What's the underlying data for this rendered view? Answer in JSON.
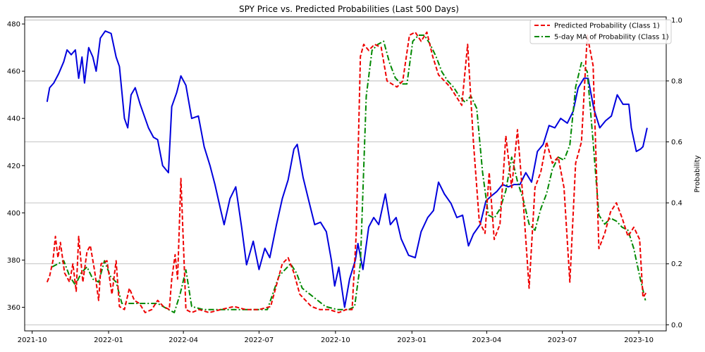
{
  "chart_data": {
    "type": "line",
    "title": "SPY Price vs. Predicted Probabilities (Last 500 Days)",
    "xlabel": "",
    "ylabel": "",
    "y2label": "Probability",
    "x_ticks": [
      "2021-10",
      "2022-01",
      "2022-04",
      "2022-07",
      "2022-10",
      "2023-01",
      "2023-04",
      "2023-07",
      "2023-10"
    ],
    "x_range": [
      "2021-09-22",
      "2023-11-03"
    ],
    "y_ticks": [
      360,
      380,
      400,
      420,
      440,
      460,
      480
    ],
    "ylim": [
      350,
      483
    ],
    "y2_ticks": [
      0.0,
      0.2,
      0.4,
      0.6,
      0.8,
      1.0
    ],
    "y2_tick_labels": [
      "0.0",
      "0.2",
      "0.4",
      "0.6",
      "0.8",
      "1.0"
    ],
    "y2lim": [
      -0.02,
      1.01
    ],
    "grid": "horizontal on probability axis",
    "legend": "top-right",
    "series": [
      {
        "name": "",
        "axis": "left",
        "color": "#0000dd",
        "style": "solid",
        "x": [
          "2021-10-19",
          "2021-10-22",
          "2021-10-27",
          "2021-11-02",
          "2021-11-08",
          "2021-11-12",
          "2021-11-17",
          "2021-11-22",
          "2021-11-26",
          "2021-11-30",
          "2021-12-03",
          "2021-12-08",
          "2021-12-13",
          "2021-12-17",
          "2021-12-22",
          "2021-12-28",
          "2022-01-04",
          "2022-01-10",
          "2022-01-14",
          "2022-01-20",
          "2022-01-24",
          "2022-01-28",
          "2022-02-02",
          "2022-02-08",
          "2022-02-14",
          "2022-02-18",
          "2022-02-24",
          "2022-03-01",
          "2022-03-07",
          "2022-03-14",
          "2022-03-18",
          "2022-03-24",
          "2022-03-29",
          "2022-04-04",
          "2022-04-11",
          "2022-04-19",
          "2022-04-26",
          "2022-05-03",
          "2022-05-09",
          "2022-05-16",
          "2022-05-20",
          "2022-05-27",
          "2022-06-03",
          "2022-06-10",
          "2022-06-16",
          "2022-06-24",
          "2022-07-01",
          "2022-07-08",
          "2022-07-14",
          "2022-07-22",
          "2022-07-29",
          "2022-08-05",
          "2022-08-12",
          "2022-08-16",
          "2022-08-23",
          "2022-08-30",
          "2022-09-06",
          "2022-09-13",
          "2022-09-20",
          "2022-09-26",
          "2022-09-30",
          "2022-10-05",
          "2022-10-12",
          "2022-10-18",
          "2022-10-25",
          "2022-10-28",
          "2022-11-03",
          "2022-11-10",
          "2022-11-16",
          "2022-11-22",
          "2022-11-30",
          "2022-12-06",
          "2022-12-13",
          "2022-12-19",
          "2022-12-28",
          "2023-01-05",
          "2023-01-12",
          "2023-01-20",
          "2023-01-27",
          "2023-02-02",
          "2023-02-09",
          "2023-02-17",
          "2023-02-24",
          "2023-03-03",
          "2023-03-10",
          "2023-03-16",
          "2023-03-24",
          "2023-03-31",
          "2023-04-06",
          "2023-04-13",
          "2023-04-20",
          "2023-04-27",
          "2023-05-04",
          "2023-05-11",
          "2023-05-18",
          "2023-05-25",
          "2023-06-01",
          "2023-06-08",
          "2023-06-15",
          "2023-06-22",
          "2023-06-29",
          "2023-07-07",
          "2023-07-14",
          "2023-07-20",
          "2023-07-27",
          "2023-08-01",
          "2023-08-08",
          "2023-08-15",
          "2023-08-22",
          "2023-08-29",
          "2023-09-05",
          "2023-09-12",
          "2023-09-19",
          "2023-09-22",
          "2023-09-28",
          "2023-10-03",
          "2023-10-06",
          "2023-10-11"
        ],
        "values": [
          447,
          453,
          455,
          459,
          464,
          469,
          467,
          469,
          457,
          466,
          455,
          470,
          466,
          460,
          474,
          477,
          476,
          466,
          462,
          440,
          436,
          450,
          453,
          446,
          440,
          436,
          432,
          431,
          420,
          417,
          445,
          451,
          458,
          454,
          440,
          441,
          428,
          420,
          412,
          401,
          395,
          406,
          411,
          394,
          378,
          388,
          376,
          385,
          381,
          395,
          406,
          414,
          427,
          429,
          415,
          405,
          395,
          396,
          392,
          380,
          369,
          377,
          360,
          372,
          380,
          387,
          376,
          394,
          398,
          395,
          408,
          395,
          398,
          389,
          382,
          381,
          392,
          398,
          401,
          413,
          408,
          404,
          398,
          399,
          386,
          391,
          395,
          405,
          407,
          409,
          412,
          411,
          412,
          412,
          417,
          413,
          426,
          429,
          437,
          436,
          440,
          438,
          443,
          453,
          457,
          457,
          444,
          436,
          439,
          441,
          450,
          446,
          446,
          436,
          426,
          427,
          428,
          436
        ]
      },
      {
        "name": "Predicted Probability (Class 1)",
        "axis": "right",
        "color": "#ee0000",
        "style": "dashed",
        "x": [
          "2021-10-19",
          "2021-10-22",
          "2021-10-26",
          "2021-10-29",
          "2021-11-01",
          "2021-11-04",
          "2021-11-09",
          "2021-11-15",
          "2021-11-19",
          "2021-11-23",
          "2021-11-26",
          "2021-12-01",
          "2021-12-06",
          "2021-12-10",
          "2021-12-15",
          "2021-12-20",
          "2021-12-23",
          "2021-12-30",
          "2022-01-05",
          "2022-01-10",
          "2022-01-14",
          "2022-01-20",
          "2022-01-26",
          "2022-02-01",
          "2022-02-07",
          "2022-02-14",
          "2022-02-22",
          "2022-03-01",
          "2022-03-08",
          "2022-03-15",
          "2022-03-18",
          "2022-03-22",
          "2022-03-25",
          "2022-03-29",
          "2022-04-04",
          "2022-04-11",
          "2022-04-20",
          "2022-05-02",
          "2022-05-16",
          "2022-06-01",
          "2022-06-15",
          "2022-07-01",
          "2022-07-15",
          "2022-07-29",
          "2022-08-05",
          "2022-08-12",
          "2022-08-19",
          "2022-08-26",
          "2022-09-02",
          "2022-09-12",
          "2022-09-23",
          "2022-10-05",
          "2022-10-14",
          "2022-10-21",
          "2022-10-26",
          "2022-10-31",
          "2022-11-04",
          "2022-11-10",
          "2022-11-17",
          "2022-11-25",
          "2022-12-02",
          "2022-12-08",
          "2022-12-14",
          "2022-12-21",
          "2022-12-29",
          "2023-01-05",
          "2023-01-12",
          "2023-01-19",
          "2023-01-26",
          "2023-02-02",
          "2023-02-09",
          "2023-02-16",
          "2023-02-23",
          "2023-03-02",
          "2023-03-09",
          "2023-03-16",
          "2023-03-23",
          "2023-03-30",
          "2023-04-04",
          "2023-04-10",
          "2023-04-17",
          "2023-04-24",
          "2023-05-01",
          "2023-05-08",
          "2023-05-15",
          "2023-05-22",
          "2023-05-29",
          "2023-06-05",
          "2023-06-12",
          "2023-06-19",
          "2023-06-26",
          "2023-07-03",
          "2023-07-10",
          "2023-07-17",
          "2023-07-24",
          "2023-07-31",
          "2023-08-07",
          "2023-08-14",
          "2023-08-21",
          "2023-08-28",
          "2023-09-04",
          "2023-09-11",
          "2023-09-18",
          "2023-09-25",
          "2023-10-02",
          "2023-10-06",
          "2023-10-11"
        ],
        "values": [
          0.14,
          0.16,
          0.21,
          0.29,
          0.22,
          0.27,
          0.17,
          0.14,
          0.2,
          0.11,
          0.29,
          0.14,
          0.24,
          0.26,
          0.18,
          0.08,
          0.2,
          0.21,
          0.1,
          0.21,
          0.06,
          0.05,
          0.12,
          0.08,
          0.07,
          0.04,
          0.05,
          0.08,
          0.06,
          0.05,
          0.15,
          0.23,
          0.15,
          0.48,
          0.05,
          0.04,
          0.05,
          0.04,
          0.05,
          0.06,
          0.05,
          0.05,
          0.06,
          0.2,
          0.22,
          0.17,
          0.1,
          0.08,
          0.06,
          0.05,
          0.05,
          0.04,
          0.05,
          0.05,
          0.3,
          0.88,
          0.92,
          0.9,
          0.92,
          0.91,
          0.8,
          0.79,
          0.78,
          0.8,
          0.95,
          0.96,
          0.93,
          0.96,
          0.88,
          0.82,
          0.8,
          0.78,
          0.75,
          0.72,
          0.92,
          0.6,
          0.34,
          0.3,
          0.5,
          0.28,
          0.33,
          0.62,
          0.45,
          0.64,
          0.4,
          0.12,
          0.45,
          0.5,
          0.6,
          0.53,
          0.55,
          0.45,
          0.14,
          0.53,
          0.6,
          0.95,
          0.85,
          0.25,
          0.3,
          0.37,
          0.4,
          0.35,
          0.29,
          0.32,
          0.28,
          0.09,
          0.11
        ]
      },
      {
        "name": "5-day MA of Probability (Class 1)",
        "axis": "right",
        "color": "#008800",
        "style": "dashdot",
        "x": [
          "2021-10-25",
          "2021-11-01",
          "2021-11-08",
          "2021-11-15",
          "2021-11-22",
          "2021-11-29",
          "2021-12-06",
          "2021-12-13",
          "2021-12-20",
          "2021-12-27",
          "2022-01-03",
          "2022-01-10",
          "2022-01-17",
          "2022-01-31",
          "2022-02-14",
          "2022-03-01",
          "2022-03-14",
          "2022-03-21",
          "2022-03-28",
          "2022-04-04",
          "2022-04-11",
          "2022-04-25",
          "2022-05-16",
          "2022-06-06",
          "2022-06-27",
          "2022-07-11",
          "2022-07-25",
          "2022-08-08",
          "2022-08-15",
          "2022-08-22",
          "2022-09-05",
          "2022-09-19",
          "2022-10-03",
          "2022-10-17",
          "2022-10-24",
          "2022-10-31",
          "2022-11-07",
          "2022-11-14",
          "2022-11-21",
          "2022-11-28",
          "2022-12-05",
          "2022-12-12",
          "2022-12-19",
          "2022-12-26",
          "2023-01-02",
          "2023-01-09",
          "2023-01-16",
          "2023-01-23",
          "2023-01-30",
          "2023-02-06",
          "2023-02-13",
          "2023-02-20",
          "2023-02-27",
          "2023-03-06",
          "2023-03-13",
          "2023-03-20",
          "2023-03-27",
          "2023-04-03",
          "2023-04-10",
          "2023-04-17",
          "2023-04-24",
          "2023-05-01",
          "2023-05-08",
          "2023-05-15",
          "2023-05-22",
          "2023-05-29",
          "2023-06-05",
          "2023-06-12",
          "2023-06-19",
          "2023-06-26",
          "2023-07-03",
          "2023-07-10",
          "2023-07-17",
          "2023-07-24",
          "2023-07-31",
          "2023-08-07",
          "2023-08-14",
          "2023-08-21",
          "2023-08-28",
          "2023-09-04",
          "2023-09-11",
          "2023-09-18",
          "2023-09-25",
          "2023-10-02",
          "2023-10-09"
        ],
        "values": [
          0.19,
          0.2,
          0.21,
          0.16,
          0.13,
          0.17,
          0.19,
          0.15,
          0.14,
          0.21,
          0.16,
          0.14,
          0.07,
          0.07,
          0.07,
          0.07,
          0.05,
          0.04,
          0.1,
          0.18,
          0.06,
          0.05,
          0.05,
          0.05,
          0.05,
          0.05,
          0.16,
          0.2,
          0.17,
          0.12,
          0.09,
          0.06,
          0.05,
          0.05,
          0.06,
          0.2,
          0.75,
          0.9,
          0.92,
          0.93,
          0.86,
          0.81,
          0.79,
          0.79,
          0.93,
          0.95,
          0.95,
          0.92,
          0.88,
          0.83,
          0.8,
          0.78,
          0.75,
          0.73,
          0.75,
          0.71,
          0.5,
          0.36,
          0.35,
          0.38,
          0.44,
          0.55,
          0.47,
          0.41,
          0.33,
          0.31,
          0.38,
          0.43,
          0.51,
          0.55,
          0.54,
          0.59,
          0.78,
          0.86,
          0.83,
          0.6,
          0.36,
          0.33,
          0.35,
          0.34,
          0.32,
          0.31,
          0.25,
          0.16,
          0.08
        ]
      }
    ]
  }
}
